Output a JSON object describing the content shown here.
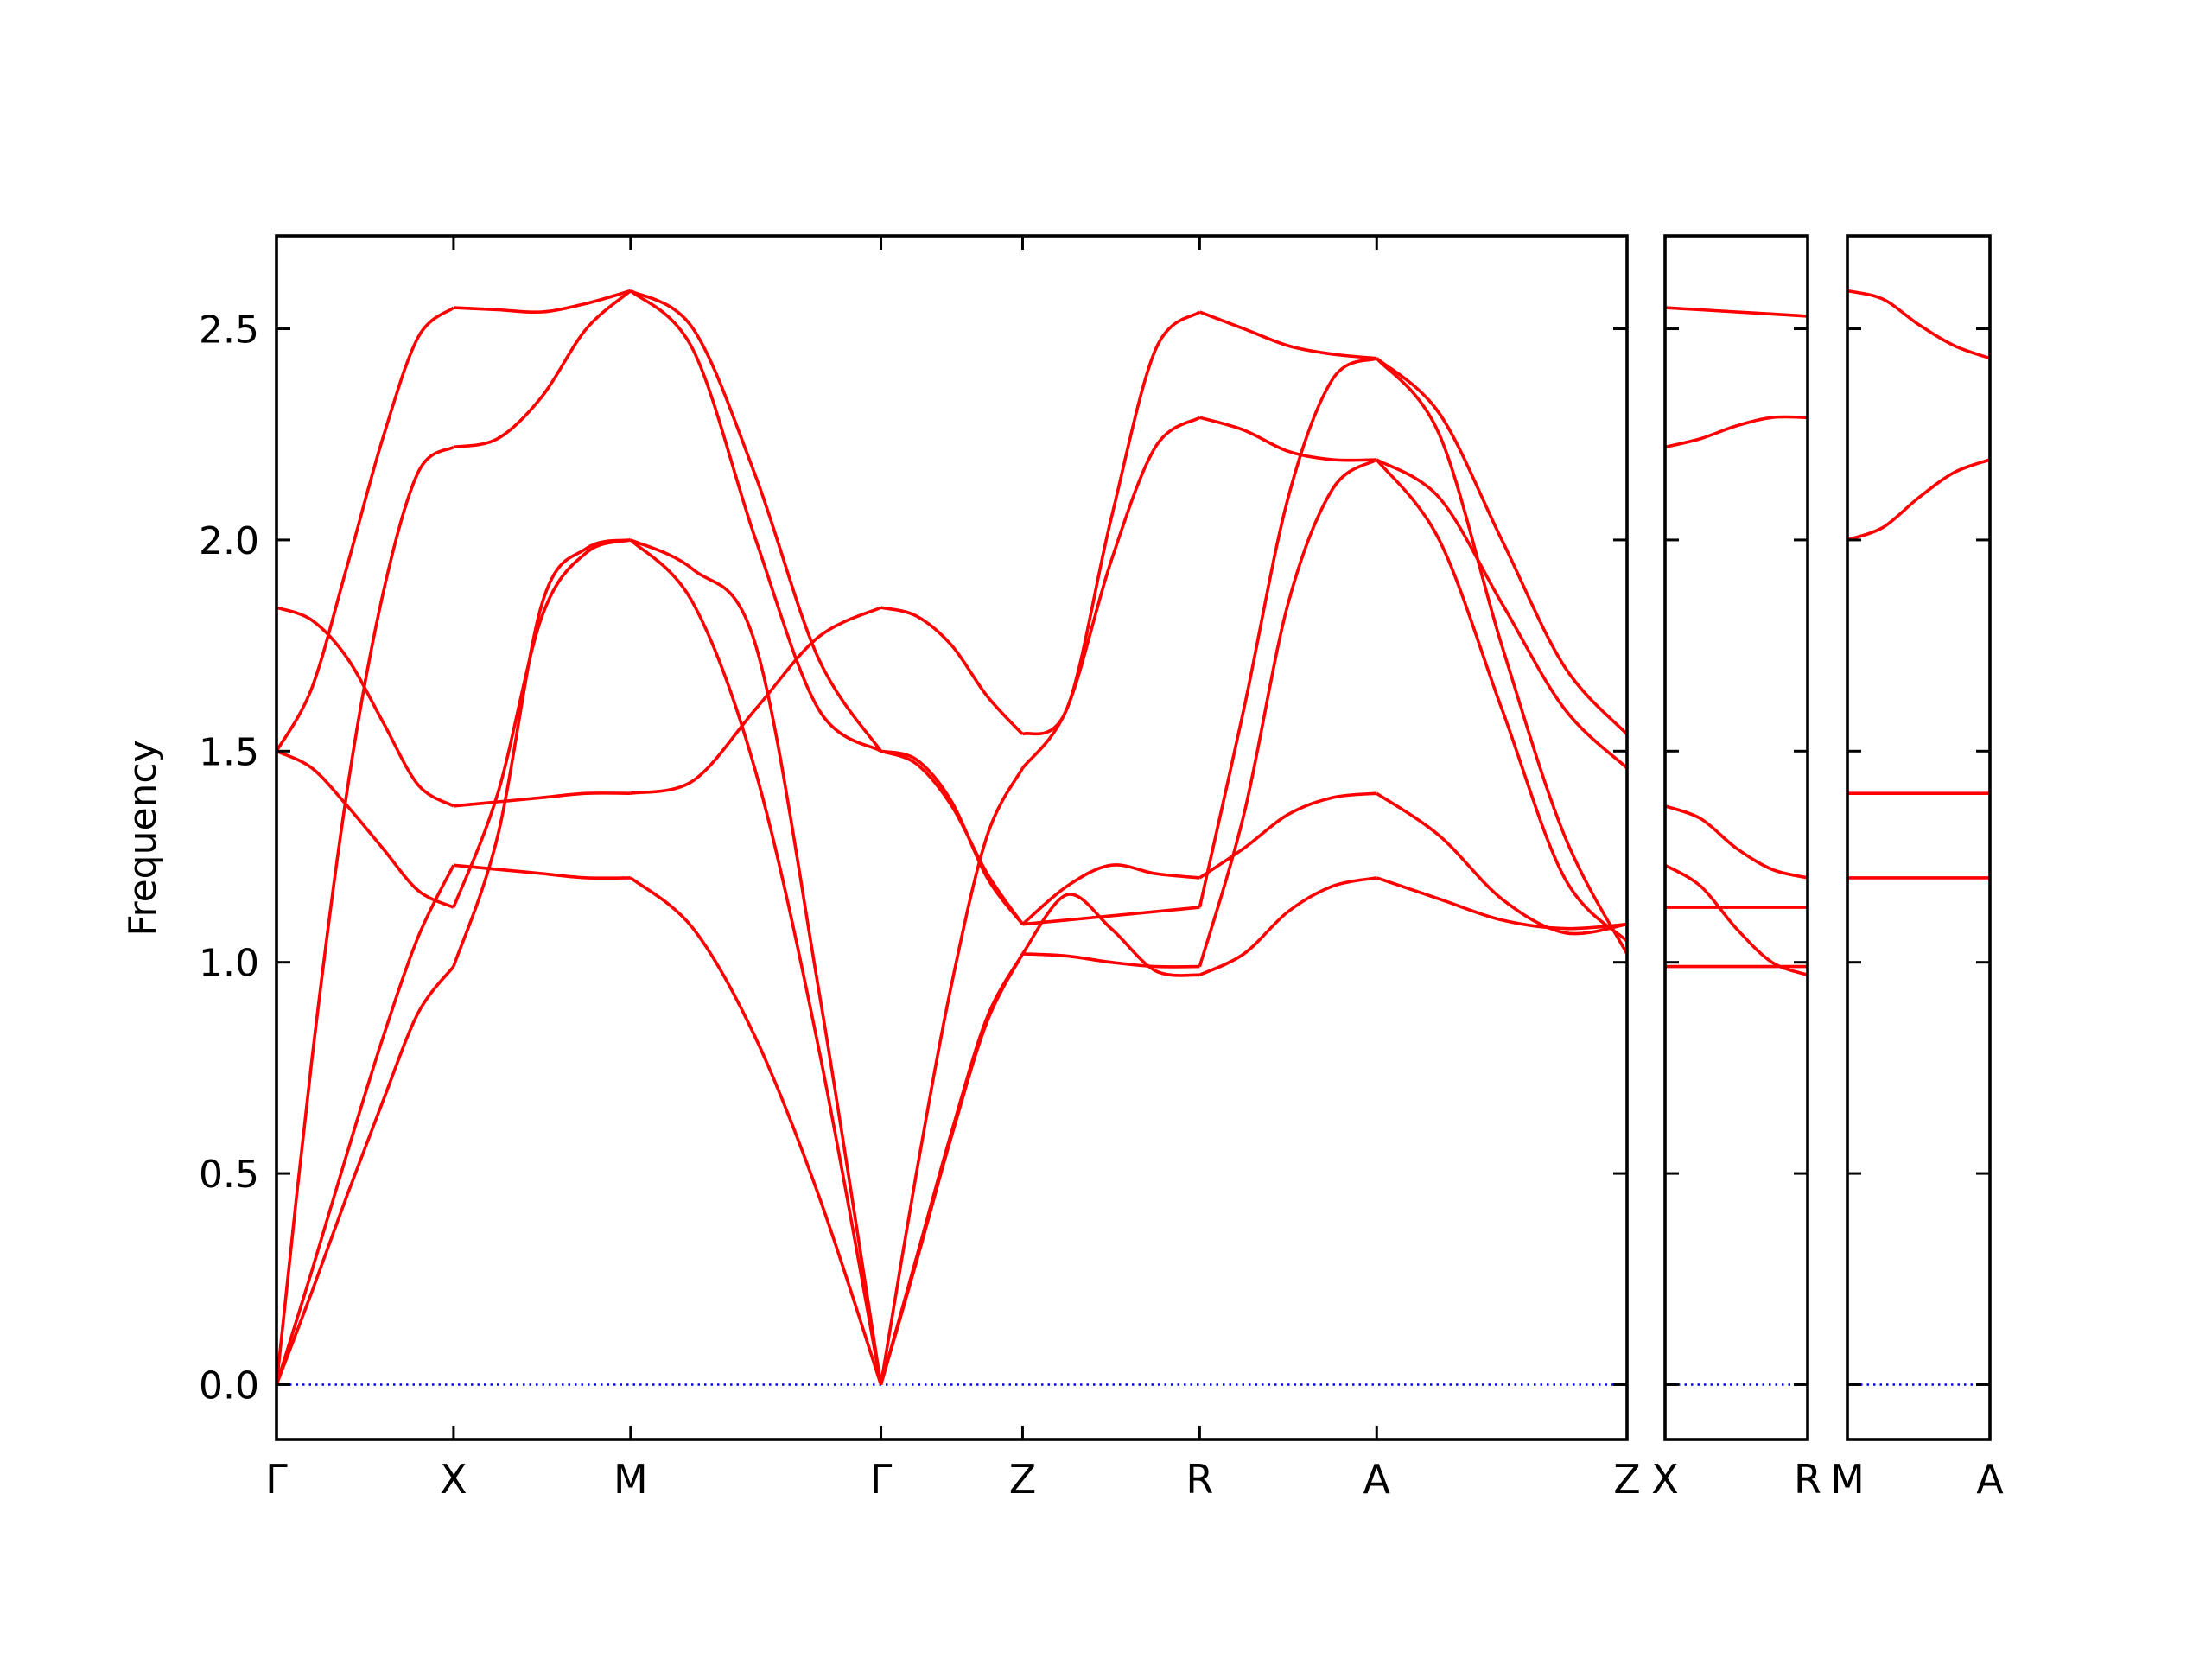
{
  "chart_data": {
    "type": "line",
    "title": "",
    "xlabel": "",
    "ylabel": "Frequency",
    "ylim": [
      -0.13,
      2.72
    ],
    "yticks": [
      0.0,
      0.5,
      1.0,
      1.5,
      2.0,
      2.5
    ],
    "ytick_labels": [
      "0.0",
      "0.5",
      "1.0",
      "1.5",
      "2.0",
      "2.5"
    ],
    "grid": false,
    "band_color": "#ff0000",
    "reference_line": {
      "y": 0.0,
      "color": "#0000ff",
      "style": "dotted"
    },
    "panels": [
      {
        "labels": [
          "Γ",
          "X",
          "M",
          "Γ",
          "Z",
          "R",
          "A",
          "Z"
        ],
        "segments": [
          {
            "from": "Γ",
            "to": "X",
            "length": 1.0,
            "bands": [
              [
                1.5,
                1.65,
                1.94,
                2.24,
                2.48,
                2.55
              ],
              [
                0.0,
                0.77,
                1.41,
                1.87,
                2.16,
                2.22
              ],
              [
                1.84,
                1.81,
                1.72,
                1.57,
                1.42,
                1.37
              ],
              [
                1.5,
                1.46,
                1.37,
                1.27,
                1.17,
                1.13
              ],
              [
                0.0,
                0.27,
                0.55,
                0.82,
                1.06,
                1.23
              ],
              [
                0.0,
                0.22,
                0.45,
                0.67,
                0.88,
                0.99
              ]
            ]
          },
          {
            "from": "X",
            "to": "M",
            "length": 1.0,
            "bands": [
              [
                2.55,
                2.545,
                2.54,
                2.56,
                2.59
              ],
              [
                2.22,
                2.24,
                2.34,
                2.5,
                2.59
              ],
              [
                1.37,
                1.38,
                1.39,
                1.4,
                1.4
              ],
              [
                1.23,
                1.22,
                1.21,
                1.2,
                1.2
              ],
              [
                1.13,
                1.4,
                1.82,
                1.97,
                2.0
              ],
              [
                0.99,
                1.3,
                1.85,
                1.98,
                2.0
              ]
            ]
          },
          {
            "from": "M",
            "to": "Γ",
            "length": 1.414,
            "bands": [
              [
                2.59,
                2.45,
                2.0,
                1.6,
                1.5
              ],
              [
                2.59,
                2.5,
                2.15,
                1.72,
                1.5
              ],
              [
                1.4,
                1.43,
                1.6,
                1.77,
                1.84
              ],
              [
                2.0,
                1.93,
                1.75,
                0.94,
                0.0
              ],
              [
                2.0,
                1.85,
                1.45,
                0.8,
                0.0
              ],
              [
                1.2,
                1.08,
                0.82,
                0.45,
                0.0
              ]
            ]
          },
          {
            "from": "Γ",
            "to": "Z",
            "length": 0.8,
            "bands": [
              [
                1.84,
                1.82,
                1.75,
                1.63,
                1.54
              ],
              [
                1.5,
                1.48,
                1.38,
                1.2,
                1.09
              ],
              [
                1.5,
                1.47,
                1.37,
                1.21,
                1.09
              ],
              [
                0.0,
                0.5,
                0.95,
                1.3,
                1.46
              ],
              [
                0.0,
                0.3,
                0.6,
                0.87,
                1.02
              ],
              [
                0.0,
                0.29,
                0.59,
                0.86,
                1.02
              ]
            ]
          },
          {
            "from": "Z",
            "to": "R",
            "length": 1.0,
            "bands": [
              [
                1.54,
                1.6,
                2.05,
                2.45,
                2.54
              ],
              [
                1.46,
                1.6,
                1.95,
                2.22,
                2.29
              ],
              [
                1.09,
                1.18,
                1.23,
                1.21,
                1.2
              ],
              [
                1.09,
                1.1,
                1.11,
                1.12,
                1.13
              ],
              [
                1.02,
                1.16,
                1.08,
                0.98,
                0.97
              ],
              [
                1.02,
                1.015,
                1.0,
                0.99,
                0.99
              ]
            ]
          },
          {
            "from": "R",
            "to": "A",
            "length": 1.0,
            "bands": [
              [
                2.54,
                2.5,
                2.46,
                2.44,
                2.43
              ],
              [
                2.29,
                2.26,
                2.21,
                2.19,
                2.19
              ],
              [
                1.2,
                1.27,
                1.35,
                1.39,
                1.4
              ],
              [
                1.13,
                1.6,
                2.1,
                2.38,
                2.43
              ],
              [
                0.99,
                1.35,
                1.85,
                2.12,
                2.19
              ],
              [
                0.97,
                1.02,
                1.12,
                1.18,
                1.2
              ]
            ]
          },
          {
            "from": "A",
            "to": "Z",
            "length": 1.414,
            "bands": [
              [
                2.43,
                2.3,
                2.0,
                1.7,
                1.54
              ],
              [
                2.43,
                2.25,
                1.75,
                1.3,
                1.02
              ],
              [
                2.19,
                2.1,
                1.85,
                1.6,
                1.46
              ],
              [
                2.19,
                2.0,
                1.6,
                1.2,
                1.05
              ],
              [
                1.4,
                1.3,
                1.15,
                1.07,
                1.09
              ],
              [
                1.2,
                1.15,
                1.1,
                1.08,
                1.09
              ]
            ]
          }
        ]
      },
      {
        "labels": [
          "X",
          "R"
        ],
        "segments": [
          {
            "from": "X",
            "to": "R",
            "length": 0.8,
            "bands": [
              [
                2.55,
                2.545,
                2.54,
                2.535,
                2.53
              ],
              [
                2.22,
                2.24,
                2.27,
                2.29,
                2.29
              ],
              [
                1.37,
                1.34,
                1.27,
                1.22,
                1.2
              ],
              [
                1.23,
                1.18,
                1.08,
                1.0,
                0.97
              ],
              [
                1.13,
                1.13,
                1.13,
                1.13,
                1.13
              ],
              [
                0.99,
                0.99,
                0.99,
                0.99,
                0.99
              ]
            ]
          }
        ]
      },
      {
        "labels": [
          "M",
          "A"
        ],
        "segments": [
          {
            "from": "M",
            "to": "A",
            "length": 0.8,
            "bands": [
              [
                2.59,
                2.57,
                2.51,
                2.46,
                2.43
              ],
              [
                2.0,
                2.03,
                2.1,
                2.16,
                2.19
              ],
              [
                1.4,
                1.4,
                1.4,
                1.4,
                1.4
              ],
              [
                1.2,
                1.2,
                1.2,
                1.2,
                1.2
              ]
            ]
          }
        ]
      }
    ]
  }
}
